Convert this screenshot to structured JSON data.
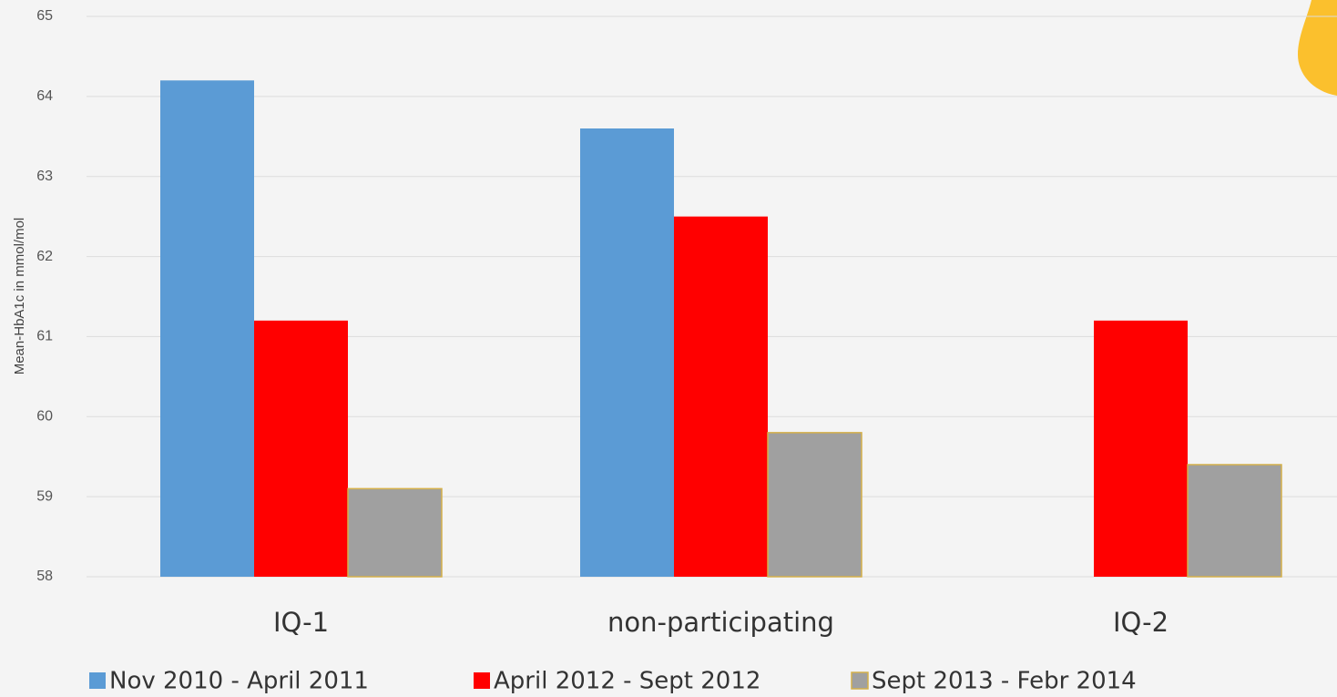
{
  "chart_data": {
    "type": "bar",
    "y_label": "Mean-HbA1c in mmol/mol",
    "categories": [
      "IQ-1",
      "non-participating",
      "IQ-2"
    ],
    "series": [
      {
        "name": "Nov 2010 - April 2011",
        "color": "#5b9bd5",
        "values": [
          64.2,
          63.6,
          null
        ]
      },
      {
        "name": "April 2012 - Sept 2012",
        "color": "#ff0000",
        "values": [
          61.2,
          62.5,
          61.2
        ]
      },
      {
        "name": "Sept 2013 - Febr 2014",
        "color": "#a0a0a0",
        "values": [
          59.1,
          59.8,
          59.4
        ]
      }
    ],
    "ylim": [
      58,
      65
    ],
    "yticks": [
      58,
      59,
      60,
      61,
      62,
      63,
      64,
      65
    ],
    "grid": true,
    "legend": "bottom"
  }
}
